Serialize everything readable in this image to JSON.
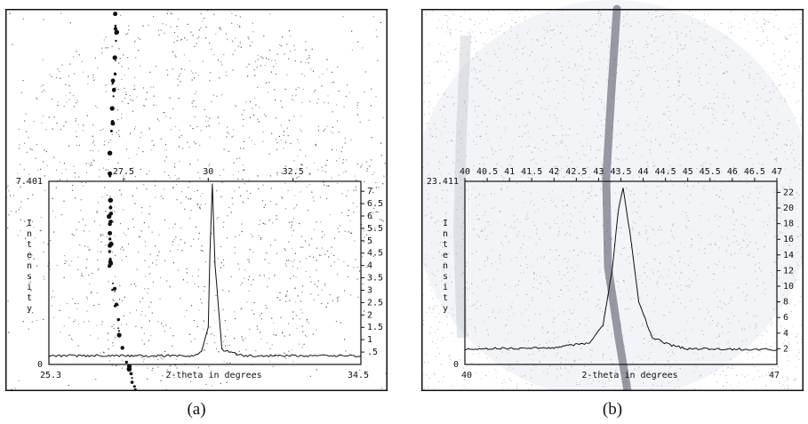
{
  "colors": {
    "frame": "#111111",
    "dots": "#2a2a2a",
    "trace": "#111111",
    "streak": "#4a4f60",
    "haze": "#eceff3"
  },
  "panels": [
    {
      "caption": "(a)",
      "chart_data": {
        "type": "line",
        "xlabel": "2-theta in degrees",
        "ylabel": "Intensity",
        "xlim": [
          25.3,
          34.5
        ],
        "ylim": [
          0,
          7.401
        ],
        "x_bottom_ticks": [
          "25.3",
          "34.5"
        ],
        "x_top_ticks": [
          "27.5",
          "30",
          "32.5"
        ],
        "y_left_ticks": [
          "7.401",
          "0"
        ],
        "y_right_ticks": [
          "7",
          "6.5",
          "6",
          "5.5",
          "5",
          "4.5",
          "4",
          "3.5",
          "3",
          "2.5",
          "2",
          "1.5",
          "1",
          ".5"
        ],
        "series": [
          {
            "x": [
              25.3,
              28.0,
              29.5,
              29.8,
              30.0,
              30.05,
              30.12,
              30.2,
              30.4,
              31.0,
              34.5
            ],
            "y": [
              0.35,
              0.35,
              0.35,
              0.5,
              1.5,
              4.5,
              7.3,
              4.0,
              0.6,
              0.35,
              0.35
            ]
          }
        ]
      }
    },
    {
      "caption": "(b)",
      "chart_data": {
        "type": "line",
        "xlabel": "2-theta in degrees",
        "ylabel": "Intensity",
        "xlim": [
          40,
          47
        ],
        "ylim": [
          0,
          23.411
        ],
        "x_bottom_ticks": [
          "40",
          "47"
        ],
        "x_top_ticks": [
          "40",
          "40.5",
          "41",
          "41.5",
          "42",
          "42.5",
          "43",
          "43.5",
          "44",
          "44.5",
          "45",
          "45.5",
          "46",
          "46.5",
          "47"
        ],
        "y_left_ticks": [
          "23.411",
          "0"
        ],
        "y_right_ticks": [
          "22",
          "20",
          "18",
          "16",
          "14",
          "12",
          "10",
          "8",
          "6",
          "4",
          "2"
        ],
        "series": [
          {
            "x": [
              40,
              42.0,
              42.8,
              43.1,
              43.3,
              43.45,
              43.55,
              43.7,
              43.9,
              44.2,
              44.6,
              45.0,
              47
            ],
            "y": [
              2.0,
              2.1,
              2.8,
              5.0,
              12.0,
              20.0,
              22.5,
              17.0,
              8.0,
              3.5,
              2.5,
              2.0,
              1.9
            ]
          }
        ]
      }
    }
  ]
}
